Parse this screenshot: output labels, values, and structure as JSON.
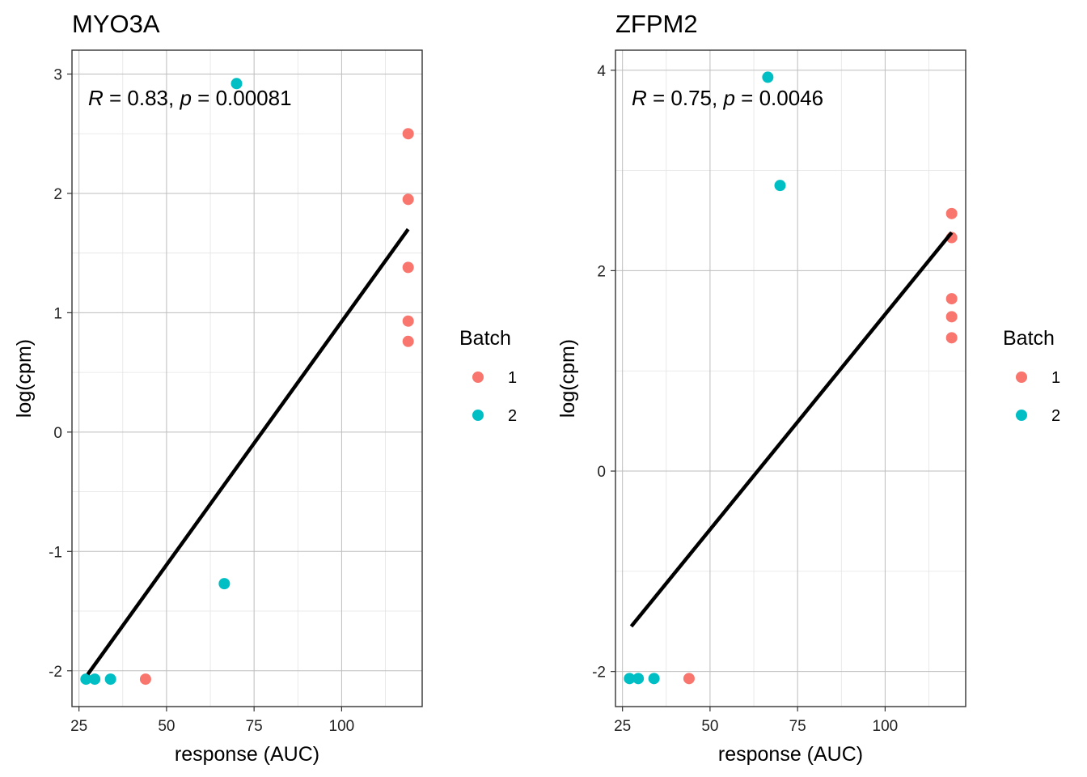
{
  "chart_data": [
    {
      "type": "scatter",
      "title": "MYO3A",
      "xlabel": "response (AUC)",
      "ylabel": "log(cpm)",
      "xlim": [
        23,
        123
      ],
      "ylim": [
        -2.3,
        3.2
      ],
      "xticks": [
        25,
        50,
        75,
        100
      ],
      "yticks": [
        -2,
        -1,
        0,
        1,
        2,
        3
      ],
      "grid": true,
      "annotation": {
        "r_label": "R",
        "r_value": " = 0.83, ",
        "p_label": "p",
        "p_value": " = 0.00081"
      },
      "series": [
        {
          "name": "1",
          "color": "#F8766D",
          "points": [
            [
              44,
              -2.07
            ],
            [
              119,
              2.5
            ],
            [
              119,
              1.95
            ],
            [
              119,
              1.38
            ],
            [
              119,
              0.93
            ],
            [
              119,
              0.76
            ]
          ]
        },
        {
          "name": "2",
          "color": "#00BFC4",
          "points": [
            [
              27,
              -2.07
            ],
            [
              29.5,
              -2.07
            ],
            [
              34,
              -2.07
            ],
            [
              66.5,
              -1.27
            ],
            [
              70,
              2.92
            ]
          ]
        }
      ],
      "fit_line": {
        "x": [
          27.5,
          119
        ],
        "y": [
          -2.03,
          1.7
        ],
        "color": "#000000"
      }
    },
    {
      "type": "scatter",
      "title": "ZFPM2",
      "xlabel": "response (AUC)",
      "ylabel": "log(cpm)",
      "xlim": [
        23,
        123
      ],
      "ylim": [
        -2.35,
        4.2
      ],
      "xticks": [
        25,
        50,
        75,
        100
      ],
      "yticks": [
        -2,
        0,
        2,
        4
      ],
      "grid": true,
      "annotation": {
        "r_label": "R",
        "r_value": " = 0.75, ",
        "p_label": "p",
        "p_value": " = 0.0046"
      },
      "series": [
        {
          "name": "1",
          "color": "#F8766D",
          "points": [
            [
              44,
              -2.07
            ],
            [
              119,
              2.57
            ],
            [
              119,
              2.33
            ],
            [
              119,
              1.72
            ],
            [
              119,
              1.54
            ],
            [
              119,
              1.33
            ]
          ]
        },
        {
          "name": "2",
          "color": "#00BFC4",
          "points": [
            [
              27,
              -2.07
            ],
            [
              29.5,
              -2.07
            ],
            [
              34,
              -2.07
            ],
            [
              66.5,
              3.93
            ],
            [
              70,
              2.85
            ]
          ]
        }
      ],
      "fit_line": {
        "x": [
          27.5,
          119
        ],
        "y": [
          -1.55,
          2.38
        ],
        "color": "#000000"
      }
    }
  ],
  "legend": {
    "title": "Batch",
    "items": [
      {
        "label": "1",
        "color": "#F8766D"
      },
      {
        "label": "2",
        "color": "#00BFC4"
      }
    ]
  }
}
